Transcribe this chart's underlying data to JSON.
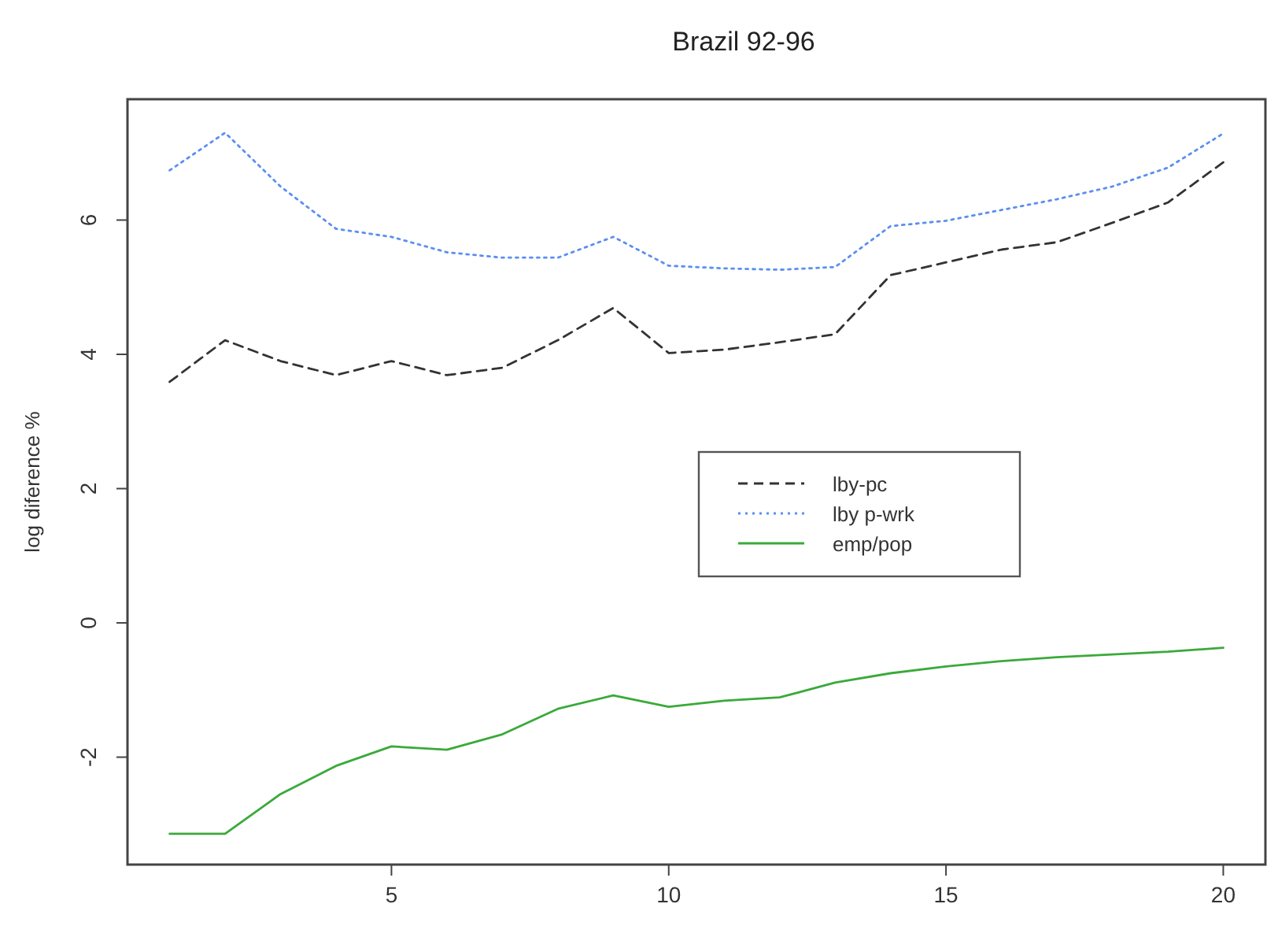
{
  "chart_data": {
    "type": "line",
    "title": "Brazil 92-96",
    "ylabel": "log diference %",
    "x": [
      1,
      2,
      3,
      4,
      5,
      6,
      7,
      8,
      9,
      10,
      11,
      12,
      13,
      14,
      15,
      16,
      17,
      18,
      19,
      20
    ],
    "xlim": [
      0.24,
      20.76
    ],
    "xticks": [
      5,
      10,
      15,
      20
    ],
    "ylim": [
      -3.6,
      7.8
    ],
    "yticks": [
      -2,
      0,
      2,
      4,
      6
    ],
    "series": [
      {
        "name": "lby-pc",
        "color": "#333333",
        "line_style": "dashed",
        "values": [
          3.59,
          4.21,
          3.9,
          3.69,
          3.9,
          3.69,
          3.8,
          4.21,
          4.69,
          4.02,
          4.07,
          4.18,
          4.3,
          5.18,
          5.37,
          5.56,
          5.67,
          5.96,
          6.26,
          6.86
        ]
      },
      {
        "name": "lby p-wrk",
        "color": "#5b8ff0",
        "line_style": "dotted",
        "values": [
          6.74,
          7.3,
          6.5,
          5.87,
          5.75,
          5.52,
          5.44,
          5.44,
          5.75,
          5.32,
          5.28,
          5.26,
          5.3,
          5.91,
          5.99,
          6.15,
          6.31,
          6.5,
          6.78,
          7.29
        ]
      },
      {
        "name": "emp/pop",
        "color": "#3aaa3a",
        "line_style": "solid",
        "values": [
          -3.14,
          -3.14,
          -2.55,
          -2.13,
          -1.84,
          -1.89,
          -1.66,
          -1.28,
          -1.08,
          -1.25,
          -1.16,
          -1.11,
          -0.89,
          -0.75,
          -0.65,
          -0.57,
          -0.51,
          -0.47,
          -0.43,
          -0.37
        ]
      }
    ],
    "legend": "right",
    "grid": false
  }
}
